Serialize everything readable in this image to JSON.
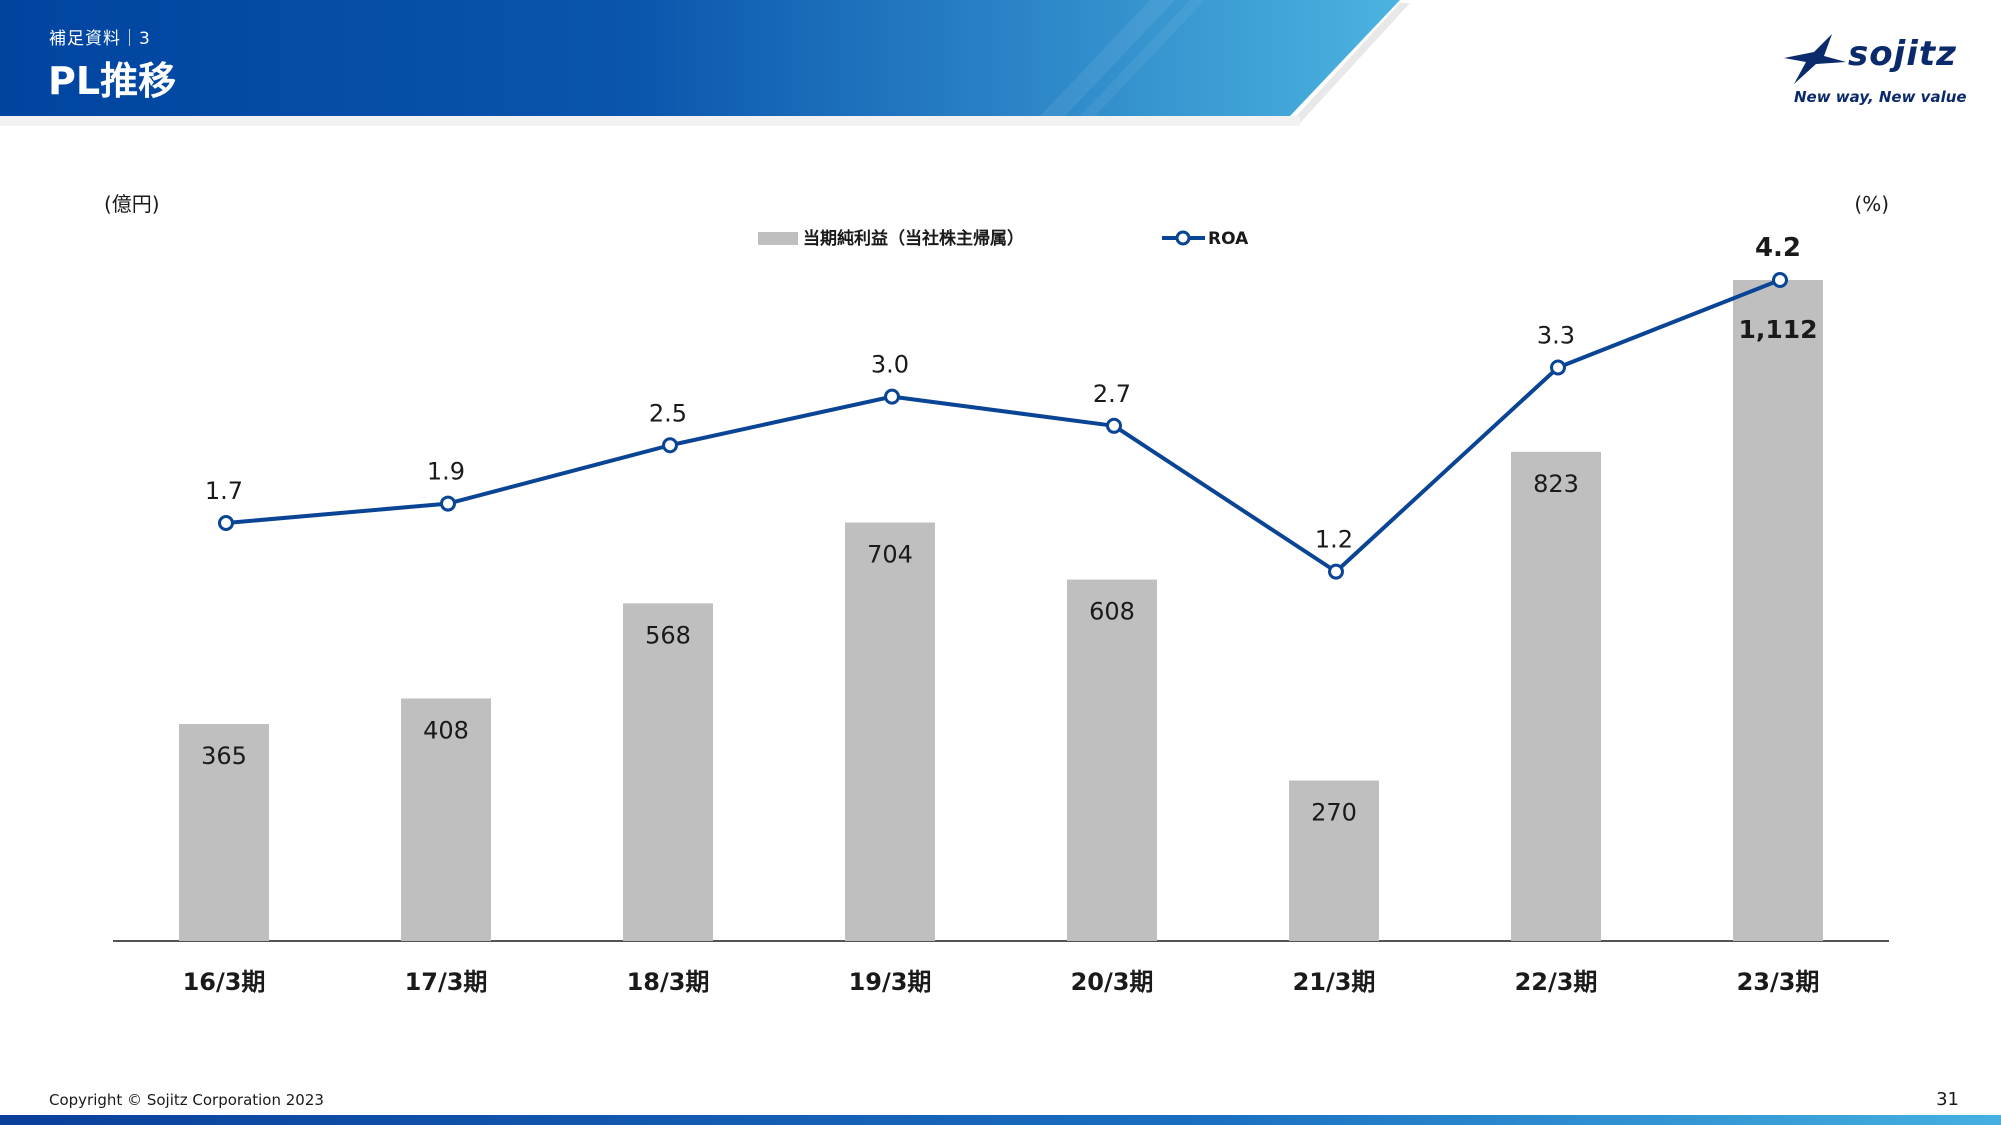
{
  "header": {
    "section_label": "補足資料｜3",
    "page_title": "PL推移"
  },
  "logo": {
    "name": "sojitz",
    "tagline": "New way, New value",
    "color": "#0a2a6b"
  },
  "colors": {
    "header_dark": "#0044a0",
    "header_light": "#4cb3e0",
    "bar": "#bfbfbf",
    "line": "#0a4595"
  },
  "chart_data": {
    "type": "bar+line",
    "categories": [
      "16/3期",
      "17/3期",
      "18/3期",
      "19/3期",
      "20/3期",
      "21/3期",
      "22/3期",
      "23/3期"
    ],
    "left_axis_unit": "(億円)",
    "right_axis_unit": "(%)",
    "series": [
      {
        "name": "当期純利益（当社株主帰属）",
        "type": "bar",
        "axis": "left",
        "values": [
          365,
          408,
          568,
          704,
          608,
          270,
          823,
          1112
        ],
        "labels": [
          "365",
          "408",
          "568",
          "704",
          "608",
          "270",
          "823",
          "1,112"
        ],
        "color": "#bfbfbf"
      },
      {
        "name": "ROA",
        "type": "line",
        "axis": "right",
        "values": [
          1.7,
          1.9,
          2.5,
          3.0,
          2.7,
          1.2,
          3.3,
          4.2
        ],
        "labels": [
          "1.7",
          "1.9",
          "2.5",
          "3.0",
          "2.7",
          "1.2",
          "3.3",
          "4.2"
        ],
        "color": "#0a4595"
      }
    ],
    "left_ylim": [
      0,
      1112
    ],
    "right_ylim": [
      -2.6,
      4.2
    ],
    "grid": false,
    "legend": "top-center"
  },
  "footer": {
    "copyright": "Copyright © Sojitz Corporation 2023",
    "page_number": "31"
  }
}
